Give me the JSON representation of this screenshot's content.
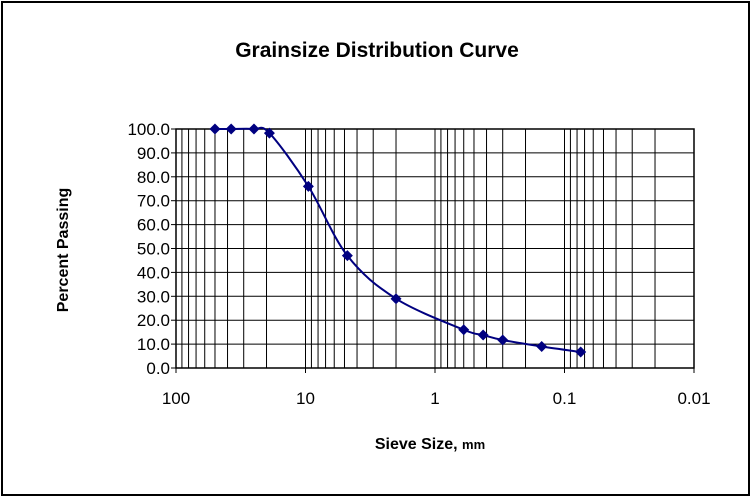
{
  "chart_data": {
    "type": "line",
    "title": "Grainsize Distribution Curve",
    "ylabel": "Percent Passing",
    "xlabel": "Sieve Size,",
    "xlabel_unit": "mm",
    "x": [
      50,
      37.5,
      25,
      19,
      9.5,
      4.75,
      2,
      0.6,
      0.425,
      0.3,
      0.15,
      0.075
    ],
    "series": [
      {
        "name": "Percent Passing",
        "color": "#000080",
        "values": [
          100,
          100,
          100,
          98.3,
          76,
          47,
          29,
          16,
          13.8,
          11.7,
          9,
          6.7
        ]
      }
    ],
    "xlim": [
      100,
      0.01
    ],
    "xticks": [
      100,
      10,
      1,
      0.1,
      0.01
    ],
    "xscale": "log",
    "ylim": [
      0,
      100
    ],
    "yticks": [
      {
        "value": 0,
        "label": "0.0"
      },
      {
        "value": 10,
        "label": "10.0"
      },
      {
        "value": 20,
        "label": "20.0"
      },
      {
        "value": 30,
        "label": "30.0"
      },
      {
        "value": 40,
        "label": "40.0"
      },
      {
        "value": 50,
        "label": "50.0"
      },
      {
        "value": 60,
        "label": "60.0"
      },
      {
        "value": 70,
        "label": "70.0"
      },
      {
        "value": 80,
        "label": "80.0"
      },
      {
        "value": 90,
        "label": "90.0"
      },
      {
        "value": 100,
        "label": "100.0"
      }
    ],
    "grid": true,
    "minor_grid": true
  }
}
